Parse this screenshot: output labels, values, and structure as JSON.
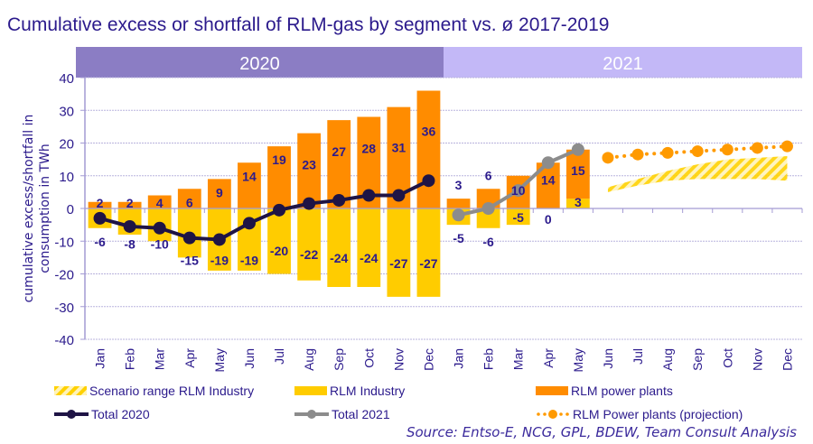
{
  "title": "Cumulative excess or shortfall of RLM-gas by segment vs. ø 2017-2019",
  "source": "Source: Entso-E, NCG, GPL, BDEW, Team Consult Analysis",
  "colors": {
    "title": "#2b1a8c",
    "band_2020": "#8b7dc4",
    "band_2021": "#c3b8f7",
    "industry": "#ffcc00",
    "power_plants": "#ff8c00",
    "total_2020": "#1f1445",
    "total_2021": "#8c8c8c",
    "projection": "#ff9a00",
    "scenario": "#ffd84a",
    "grid": "#b9b3dd",
    "axis": "#a49bd4",
    "label": "#2b1a8c"
  },
  "legend": {
    "scenario": "Scenario range RLM Industry",
    "industry": "RLM Industry",
    "power_plants": "RLM power plants",
    "total_2020": "Total 2020",
    "total_2021": "Total 2021",
    "projection": "RLM Power plants (projection)"
  },
  "chart_data": {
    "type": "bar",
    "title": "Cumulative excess or shortfall of RLM-gas by segment vs. ø 2017-2019",
    "xlabel": "",
    "ylabel": "cumulative excess/shortfall in consumption in TWh",
    "ylim": [
      -40,
      40
    ],
    "yticks": [
      40,
      30,
      20,
      10,
      0,
      -10,
      -20,
      -30,
      -40
    ],
    "grid": true,
    "legend_position": "bottom",
    "year_bands": [
      {
        "label": "2020",
        "from": 0,
        "to": 11
      },
      {
        "label": "2021",
        "from": 12,
        "to": 23
      }
    ],
    "categories": [
      "Jan",
      "Feb",
      "Mar",
      "Apr",
      "May",
      "Jun",
      "Jul",
      "Aug",
      "Sep",
      "Oct",
      "Nov",
      "Dec",
      "Jan",
      "Feb",
      "Mar",
      "Apr",
      "May",
      "Jun",
      "Jul",
      "Aug",
      "Sep",
      "Oct",
      "Nov",
      "Dec"
    ],
    "series": [
      {
        "name": "RLM power plants",
        "kind": "bar",
        "values": [
          2,
          2,
          4,
          6,
          9,
          14,
          19,
          23,
          27,
          28,
          31,
          36,
          3,
          6,
          10,
          14,
          15,
          null,
          null,
          null,
          null,
          null,
          null,
          null
        ],
        "labels": [
          "2",
          "2",
          "4",
          "6",
          "9",
          "14",
          "19",
          "23",
          "27",
          "28",
          "31",
          "36",
          "3",
          "6",
          "10",
          "14",
          "15",
          null,
          null,
          null,
          null,
          null,
          null,
          null
        ]
      },
      {
        "name": "RLM Industry",
        "kind": "bar",
        "values": [
          -6,
          -8,
          -10,
          -15,
          -19,
          -19,
          -20,
          -22,
          -24,
          -24,
          -27,
          -27,
          -5,
          -6,
          -5,
          0,
          3,
          null,
          null,
          null,
          null,
          null,
          null,
          null
        ],
        "labels": [
          "-6",
          "-8",
          "-10",
          "-15",
          "-19",
          "-19",
          "-20",
          "-22",
          "-24",
          "-24",
          "-27",
          "-27",
          "-5",
          "-6",
          "-5",
          "0",
          "3",
          null,
          null,
          null,
          null,
          null,
          null,
          null
        ]
      },
      {
        "name": "Total 2020",
        "kind": "line",
        "values": [
          -3,
          -5.5,
          -6,
          -9,
          -9.5,
          -4.5,
          -0.5,
          1.5,
          2.5,
          4,
          4,
          8.5,
          null,
          null,
          null,
          null,
          null,
          null,
          null,
          null,
          null,
          null,
          null,
          null
        ]
      },
      {
        "name": "Total 2021",
        "kind": "line",
        "values": [
          null,
          null,
          null,
          null,
          null,
          null,
          null,
          null,
          null,
          null,
          null,
          null,
          -2,
          0,
          5.5,
          14,
          18,
          null,
          null,
          null,
          null,
          null,
          null,
          null
        ]
      },
      {
        "name": "RLM Power plants (projection)",
        "kind": "dotted-line",
        "values": [
          null,
          null,
          null,
          null,
          null,
          null,
          null,
          null,
          null,
          null,
          null,
          null,
          null,
          null,
          null,
          null,
          null,
          15.5,
          16.5,
          17,
          17.5,
          18,
          18.5,
          19
        ]
      },
      {
        "name": "Scenario range RLM Industry",
        "kind": "range-area",
        "lower": [
          null,
          null,
          null,
          null,
          null,
          null,
          null,
          null,
          null,
          null,
          null,
          null,
          null,
          null,
          null,
          null,
          null,
          5,
          7,
          8.5,
          9,
          9,
          9,
          8.5
        ],
        "upper": [
          null,
          null,
          null,
          null,
          null,
          null,
          null,
          null,
          null,
          null,
          null,
          null,
          null,
          null,
          null,
          null,
          null,
          6.5,
          9,
          11.5,
          13.5,
          15,
          15.5,
          16
        ]
      }
    ]
  }
}
